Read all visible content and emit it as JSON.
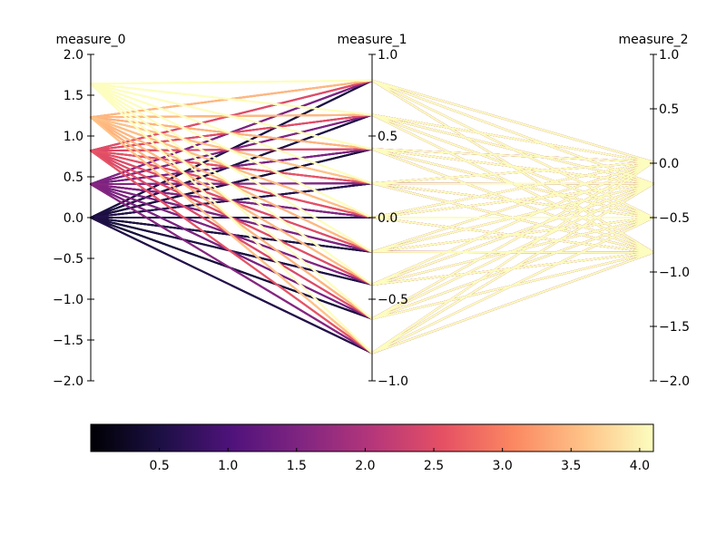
{
  "chart_data": {
    "type": "parallel_coordinates",
    "axes": [
      {
        "name": "measure_0",
        "ylim": [
          -2.0,
          2.0
        ],
        "ticks": [
          -2.0,
          -1.5,
          -1.0,
          -0.5,
          0.0,
          0.5,
          1.0,
          1.5,
          2.0
        ],
        "tick_labels": [
          "−2.0",
          "−1.5",
          "−1.0",
          "−0.5",
          "0.0",
          "0.5",
          "1.0",
          "1.5",
          "2.0"
        ]
      },
      {
        "name": "measure_1",
        "ylim": [
          -1.0,
          1.0
        ],
        "ticks": [
          -1.0,
          -0.5,
          0.0,
          0.5,
          1.0
        ],
        "tick_labels": [
          "−1.0",
          "−0.5",
          "0.0",
          "0.5",
          "1.0"
        ]
      },
      {
        "name": "measure_2",
        "ylim": [
          -2.0,
          1.0
        ],
        "ticks": [
          -2.0,
          -1.5,
          -1.0,
          -0.5,
          0.0,
          0.5,
          1.0
        ],
        "tick_labels": [
          "−2.0",
          "−1.5",
          "−1.0",
          "−0.5",
          "0.0",
          "0.5",
          "1.0"
        ]
      }
    ],
    "levels": {
      "measure_0": [
        0.0,
        0.41,
        0.82,
        1.23,
        1.64
      ],
      "measure_1": [
        -0.83,
        -0.62,
        -0.41,
        -0.21,
        0.0,
        0.21,
        0.42,
        0.63,
        0.84
      ],
      "measure_2": [
        -0.82,
        -0.5,
        -0.19,
        0.01
      ]
    },
    "note": "Each polyline connects one level of measure_0 to one level of measure_1 to one level of measure_2; color encodes a value mapped through the colorbar.",
    "colorbar": {
      "colormap": "magma",
      "range": [
        0.0,
        4.1
      ],
      "ticks": [
        0.5,
        1.0,
        1.5,
        2.0,
        2.5,
        3.0,
        3.5,
        4.0
      ],
      "tick_labels": [
        "0.5",
        "1.0",
        "1.5",
        "2.0",
        "2.5",
        "3.0",
        "3.5",
        "4.0"
      ],
      "colors": [
        "#000004",
        "#1c1044",
        "#4f127b",
        "#812581",
        "#b5367a",
        "#e55064",
        "#fb8761",
        "#fec287",
        "#fcfdbf"
      ]
    }
  }
}
